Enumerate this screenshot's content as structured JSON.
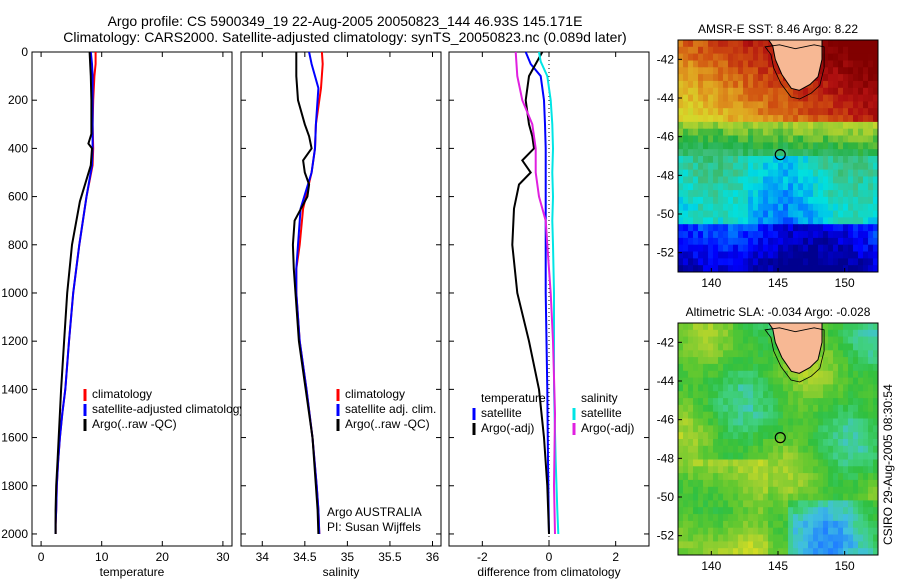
{
  "header": {
    "line1": "Argo profile: CS 5900349_19 22-Aug-2005 20050823_144 46.93S 145.171E",
    "line2": "Climatology: CARS2000. Satellite-adjusted climatology: synTS_20050823.nc (0.089d later)"
  },
  "footer_stamp": "CSIRO 29-Aug-2005 08:30:54",
  "colors": {
    "climatology": "#ff0000",
    "satellite": "#0000ff",
    "argo": "#000000",
    "salinity_satellite": "#00e5e5",
    "salinity_argo": "#e020e0",
    "land": "#f7b894"
  },
  "chart_data": [
    {
      "type": "line",
      "title": "",
      "xlabel": "temperature",
      "ylabel": "",
      "xlim": [
        -1.5,
        31.5
      ],
      "ylim": [
        2050,
        0
      ],
      "xticks": [
        0,
        10,
        20,
        30
      ],
      "yticks": [
        0,
        200,
        400,
        600,
        800,
        1000,
        1200,
        1400,
        1600,
        1800,
        2000
      ],
      "legend": [
        "climatology",
        "satellite-adjusted climatology",
        "Argo(..raw -QC)"
      ],
      "series": [
        {
          "name": "climatology",
          "color": "#ff0000",
          "x": [
            9.0,
            9.0,
            8.8,
            8.6,
            8.5,
            8.6,
            8.5,
            7.5,
            6.3,
            5.3,
            4.6,
            4.0,
            3.5,
            3.1,
            2.8,
            2.6,
            2.5,
            2.4,
            2.4
          ],
          "y": [
            0,
            50,
            100,
            200,
            300,
            400,
            470,
            600,
            800,
            1000,
            1200,
            1400,
            1500,
            1600,
            1700,
            1800,
            1900,
            1960,
            2000
          ]
        },
        {
          "name": "satellite-adjusted climatology",
          "color": "#0000ff",
          "x": [
            8.2,
            8.4,
            8.5,
            8.5,
            8.5,
            8.5,
            8.4,
            7.5,
            6.3,
            5.3,
            4.6,
            4.0,
            3.5,
            3.1,
            2.8,
            2.6,
            2.5,
            2.4,
            2.4
          ],
          "y": [
            0,
            50,
            100,
            200,
            300,
            400,
            470,
            600,
            800,
            1000,
            1200,
            1400,
            1500,
            1600,
            1700,
            1800,
            1900,
            1960,
            2000
          ]
        },
        {
          "name": "Argo(..raw -QC)",
          "color": "#000000",
          "x": [
            8.0,
            8.2,
            8.3,
            8.3,
            8.3,
            7.8,
            8.4,
            8.2,
            6.4,
            5.1,
            4.3,
            3.8,
            3.3,
            2.9,
            2.7,
            2.5,
            2.4,
            2.4
          ],
          "y": [
            0,
            100,
            200,
            300,
            340,
            380,
            400,
            470,
            620,
            800,
            1000,
            1200,
            1400,
            1600,
            1700,
            1800,
            1900,
            2000
          ]
        }
      ]
    },
    {
      "type": "line",
      "xlabel": "salinity",
      "xlim": [
        33.75,
        36.1
      ],
      "ylim": [
        2050,
        0
      ],
      "xticks": [
        34,
        34.5,
        35,
        35.5,
        36
      ],
      "xtick_labels": [
        "34",
        "34.5",
        "35",
        "35.5",
        "36"
      ],
      "legend": [
        "climatology",
        "satellite adj. clim.",
        "Argo(..raw -QC)"
      ],
      "annotation": [
        "Argo AUSTRALIA",
        "PI: Susan Wijffels"
      ],
      "series": [
        {
          "name": "climatology",
          "color": "#ff0000",
          "x": [
            34.7,
            34.71,
            34.69,
            34.63,
            34.62,
            34.58,
            34.48,
            34.44,
            34.4,
            34.4,
            34.44,
            34.52,
            34.59,
            34.64,
            34.66,
            34.67
          ],
          "y": [
            0,
            50,
            150,
            300,
            400,
            500,
            650,
            800,
            900,
            1000,
            1200,
            1400,
            1600,
            1800,
            1900,
            2000
          ]
        },
        {
          "name": "satellite adj. clim.",
          "color": "#0000ff",
          "x": [
            34.55,
            34.58,
            34.66,
            34.63,
            34.62,
            34.58,
            34.45,
            34.42,
            34.4,
            34.4,
            34.44,
            34.52,
            34.59,
            34.64,
            34.66,
            34.67
          ],
          "y": [
            0,
            50,
            150,
            300,
            400,
            500,
            650,
            800,
            900,
            1000,
            1200,
            1400,
            1600,
            1800,
            1900,
            2000
          ]
        },
        {
          "name": "Argo(..raw -QC)",
          "color": "#000000",
          "x": [
            34.4,
            34.4,
            34.42,
            34.5,
            34.55,
            34.58,
            34.48,
            34.5,
            34.55,
            34.53,
            34.38,
            34.36,
            34.37,
            34.39,
            34.43,
            34.51,
            34.59,
            34.63,
            34.65,
            34.66
          ],
          "y": [
            0,
            100,
            200,
            300,
            350,
            400,
            450,
            500,
            550,
            600,
            700,
            800,
            900,
            1000,
            1200,
            1400,
            1600,
            1800,
            1900,
            2000
          ]
        }
      ]
    },
    {
      "type": "line",
      "xlabel": "difference from climatology",
      "xlim": [
        -3.0,
        3.0
      ],
      "ylim": [
        2050,
        0
      ],
      "xticks": [
        -2,
        0,
        2
      ],
      "xtick_labels": [
        "-2",
        "0",
        "2"
      ],
      "legend": [
        "temperature",
        "satellite",
        "Argo(-adj)",
        "salinity",
        "satellite",
        "Argo(-adj)"
      ],
      "series": [
        {
          "name": "temperature satellite",
          "color": "#0000ff",
          "x": [
            -0.7,
            -0.55,
            -0.25,
            -0.15,
            -0.12,
            -0.1,
            -0.1,
            -0.1,
            -0.1,
            -0.05,
            -0.03,
            0.0
          ],
          "y": [
            0,
            50,
            100,
            200,
            300,
            400,
            500,
            700,
            1000,
            1400,
            1700,
            2000
          ]
        },
        {
          "name": "temperature Argo(-adj)",
          "color": "#000000",
          "x": [
            -0.2,
            -0.6,
            -0.7,
            -0.6,
            -0.5,
            -0.45,
            -0.8,
            -0.55,
            -0.9,
            -1.05,
            -1.1,
            -0.95,
            -0.6,
            -0.3,
            -0.15,
            -0.05,
            0.0
          ],
          "y": [
            0,
            100,
            200,
            300,
            350,
            400,
            450,
            500,
            550,
            650,
            800,
            1000,
            1200,
            1400,
            1600,
            1800,
            2000
          ]
        },
        {
          "name": "salinity satellite",
          "color": "#00e5e5",
          "x": [
            -0.3,
            -0.25,
            -0.05,
            0.05,
            0.1,
            0.12,
            0.1,
            0.12,
            0.1,
            0.12,
            0.15,
            0.15,
            0.2,
            0.25,
            0.28
          ],
          "y": [
            0,
            40,
            100,
            200,
            300,
            400,
            500,
            600,
            700,
            800,
            1000,
            1400,
            1700,
            1900,
            2000
          ]
        },
        {
          "name": "salinity Argo(-adj)",
          "color": "#e020e0",
          "x": [
            -1.0,
            -0.95,
            -0.8,
            -0.5,
            -0.4,
            -0.4,
            -0.3,
            -0.1,
            -0.05,
            0.0,
            0.05,
            0.12,
            0.18,
            0.15,
            0.18
          ],
          "y": [
            0,
            100,
            200,
            300,
            400,
            500,
            600,
            700,
            800,
            900,
            1000,
            1200,
            1500,
            1800,
            2000
          ]
        }
      ]
    },
    {
      "type": "heatmap",
      "title": "AMSR-E SST: 8.46 Argo: 8.22",
      "xlim": [
        137.5,
        152.5
      ],
      "ylim": [
        -53,
        -41
      ],
      "xticks": [
        140,
        145,
        150
      ],
      "yticks": [
        -42,
        -44,
        -46,
        -48,
        -50,
        -52
      ],
      "marker": {
        "lon": 145.17,
        "lat": -46.93
      },
      "colorscale": [
        "#00008f",
        "#0000ff",
        "#0080ff",
        "#00e0e0",
        "#40c080",
        "#20b040",
        "#9acd32",
        "#d8d82a",
        "#e0a020",
        "#d05010",
        "#b01010",
        "#800000"
      ]
    },
    {
      "type": "heatmap",
      "title": "Altimetric SLA: -0.034 Argo: -0.028",
      "xlim": [
        137.5,
        152.5
      ],
      "ylim": [
        -53,
        -41
      ],
      "xticks": [
        140,
        145,
        150
      ],
      "yticks": [
        -42,
        -44,
        -46,
        -48,
        -50,
        -52
      ],
      "marker": {
        "lon": 145.17,
        "lat": -46.93
      },
      "colorscale": [
        "#2080ff",
        "#40c0e0",
        "#40d080",
        "#30c040",
        "#60c830",
        "#a0d030",
        "#e0e020",
        "#f0b020",
        "#f08020"
      ]
    }
  ]
}
